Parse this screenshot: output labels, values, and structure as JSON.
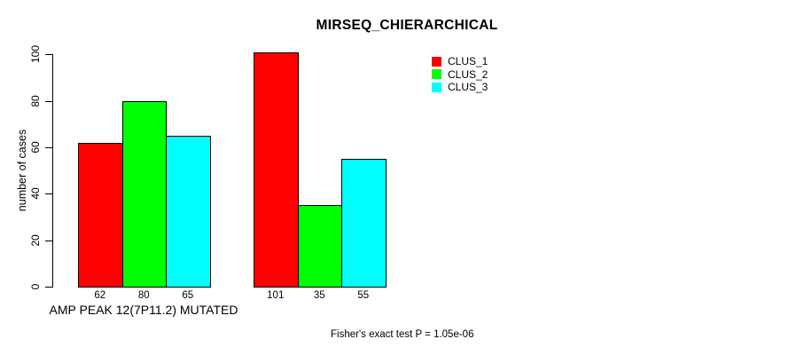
{
  "chart_data": {
    "type": "bar",
    "title": "MIRSEQ_CHIERARCHICAL",
    "ylabel": "number of cases",
    "xlabel": "AMP PEAK 12(7P11.2) MUTATED",
    "ylim": [
      0,
      100
    ],
    "yticks": [
      0,
      20,
      40,
      60,
      80,
      100
    ],
    "categories": [
      "AMP PEAK 12(7P11.2) MUTATED",
      ""
    ],
    "series": [
      {
        "name": "CLUS_1",
        "color": "#ff0000",
        "values": [
          62,
          101
        ]
      },
      {
        "name": "CLUS_2",
        "color": "#00ff00",
        "values": [
          80,
          35
        ]
      },
      {
        "name": "CLUS_3",
        "color": "#00ffff",
        "values": [
          65,
          55
        ]
      }
    ],
    "bar_value_labels": [
      [
        62,
        80,
        65
      ],
      [
        101,
        35,
        55
      ]
    ],
    "legend_position": "top-right",
    "grid": false,
    "annotation": "Fisher's exact test P = 1.05e-06",
    "colors": {
      "background": "#ffffff",
      "axis": "#000000",
      "text": "#000000"
    }
  }
}
